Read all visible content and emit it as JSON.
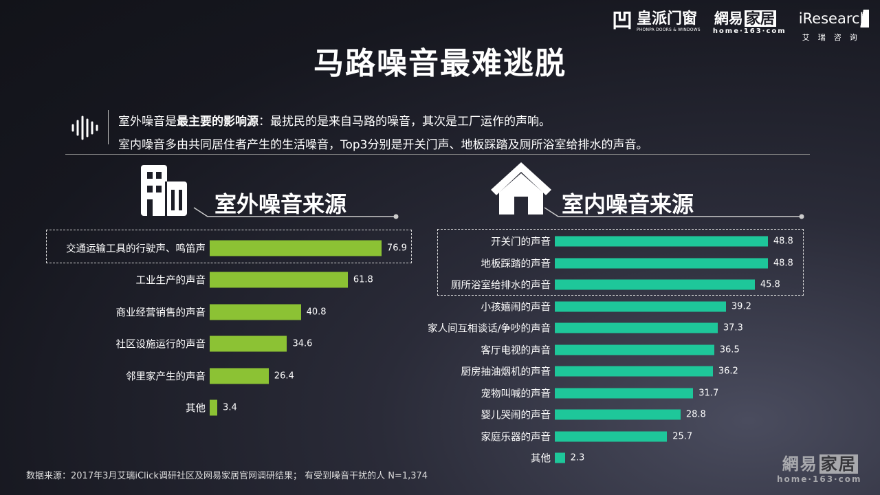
{
  "header": {
    "title": "马路噪音最难逃脱"
  },
  "logos": {
    "phonpa_mark": "凹",
    "phonpa_cn": "皇派门窗",
    "phonpa_en": "PHONPA DOORS & WINDOWS",
    "netease_cn_a": "網易",
    "netease_cn_b": "家居",
    "netease_en": "home·163·com",
    "iresearch_en": "iResearch",
    "iresearch_cn": "艾瑞咨询"
  },
  "intro": {
    "line1_a": "室外噪音是",
    "line1_bold": "最主要的影响源",
    "line1_b": "：最扰民的是来自马路的噪音，其次是工厂运作的声响。",
    "line2": "室内噪音多由共同居住者产生的生活噪音，Top3分别是开关门声、地板踩踏及厕所浴室给排水的声音。"
  },
  "colors": {
    "outdoor": "#8cc234",
    "indoor": "#1ec79a"
  },
  "chart_data": [
    {
      "type": "bar",
      "orientation": "horizontal",
      "title": "室外噪音来源",
      "categories": [
        "交通运输工具的行驶声、鸣笛声",
        "工业生产的声音",
        "商业经营销售的声音",
        "社区设施运行的声音",
        "邻里家产生的声音",
        "其他"
      ],
      "values": [
        76.9,
        61.8,
        40.8,
        34.6,
        26.4,
        3.4
      ],
      "highlighted": [
        0
      ]
    },
    {
      "type": "bar",
      "orientation": "horizontal",
      "title": "室内噪音来源",
      "categories": [
        "开关门的声音",
        "地板踩踏的声音",
        "厕所浴室给排水的声音",
        "小孩嬉闹的声音",
        "家人间互相谈话/争吵的声音",
        "客厅电视的声音",
        "厨房抽油烟机的声音",
        "宠物叫喊的声音",
        "婴儿哭闹的声音",
        "家庭乐器的声音",
        "其他"
      ],
      "values": [
        48.8,
        48.8,
        45.8,
        39.2,
        37.3,
        36.5,
        36.2,
        31.7,
        28.8,
        25.7,
        2.3
      ],
      "highlighted": [
        0,
        1,
        2
      ]
    }
  ],
  "footer": {
    "source": "数据来源：2017年3月艾瑞iClick调研社区及网易家居官网调研结果； 有受到噪音干扰的人 N=1,374"
  },
  "watermark": {
    "cn_a": "網易",
    "cn_b": "家居",
    "en": "home·163·com"
  }
}
